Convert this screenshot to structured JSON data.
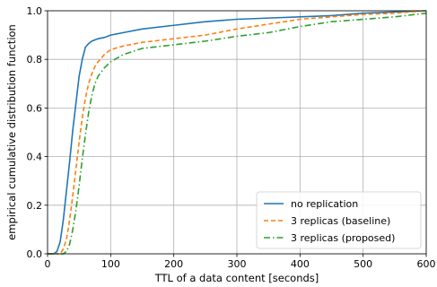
{
  "chart_data": {
    "type": "line",
    "title": "",
    "xlabel": "TTL of a data content [seconds]",
    "ylabel": "empirical cumulative distribution function",
    "xlim": [
      0,
      600
    ],
    "ylim": [
      0,
      1.0
    ],
    "xticks": [
      0,
      100,
      200,
      300,
      400,
      500,
      600
    ],
    "yticks": [
      0.0,
      0.2,
      0.4,
      0.6,
      0.8,
      1.0
    ],
    "xtick_labels": [
      "0",
      "100",
      "200",
      "300",
      "400",
      "500",
      "600"
    ],
    "ytick_labels": [
      "0.0",
      "0.2",
      "0.4",
      "0.6",
      "0.8",
      "1.0"
    ],
    "grid": true,
    "legend_position": "lower-right",
    "series": [
      {
        "name": "no replication",
        "color": "#1f77b4",
        "style": "solid",
        "x": [
          0,
          10,
          15,
          20,
          25,
          30,
          35,
          40,
          45,
          50,
          55,
          60,
          65,
          70,
          80,
          90,
          100,
          120,
          150,
          200,
          250,
          300,
          350,
          400,
          450,
          500,
          550,
          600
        ],
        "y": [
          0,
          0,
          0.01,
          0.05,
          0.14,
          0.26,
          0.38,
          0.51,
          0.62,
          0.73,
          0.8,
          0.85,
          0.865,
          0.875,
          0.885,
          0.89,
          0.9,
          0.91,
          0.925,
          0.94,
          0.955,
          0.965,
          0.97,
          0.975,
          0.98,
          0.99,
          0.995,
          1.0
        ]
      },
      {
        "name": "3 replicas (baseline)",
        "color": "#ff7f0e",
        "style": "dashed",
        "x": [
          0,
          20,
          25,
          30,
          35,
          40,
          45,
          50,
          55,
          60,
          65,
          70,
          75,
          80,
          90,
          100,
          120,
          150,
          200,
          250,
          300,
          350,
          400,
          450,
          500,
          550,
          600
        ],
        "y": [
          0,
          0,
          0.02,
          0.06,
          0.14,
          0.24,
          0.35,
          0.46,
          0.56,
          0.64,
          0.7,
          0.74,
          0.77,
          0.79,
          0.82,
          0.84,
          0.855,
          0.87,
          0.885,
          0.9,
          0.925,
          0.945,
          0.965,
          0.975,
          0.985,
          0.99,
          1.0
        ]
      },
      {
        "name": "3 replicas (proposed)",
        "color": "#2ca02c",
        "style": "dashdot",
        "x": [
          0,
          25,
          30,
          35,
          40,
          45,
          50,
          55,
          60,
          65,
          70,
          75,
          80,
          90,
          100,
          120,
          150,
          200,
          250,
          300,
          350,
          400,
          450,
          500,
          550,
          600
        ],
        "y": [
          0,
          0,
          0.01,
          0.04,
          0.1,
          0.18,
          0.28,
          0.39,
          0.49,
          0.58,
          0.65,
          0.7,
          0.73,
          0.765,
          0.79,
          0.82,
          0.845,
          0.86,
          0.875,
          0.895,
          0.91,
          0.935,
          0.955,
          0.965,
          0.975,
          0.99
        ]
      }
    ]
  }
}
